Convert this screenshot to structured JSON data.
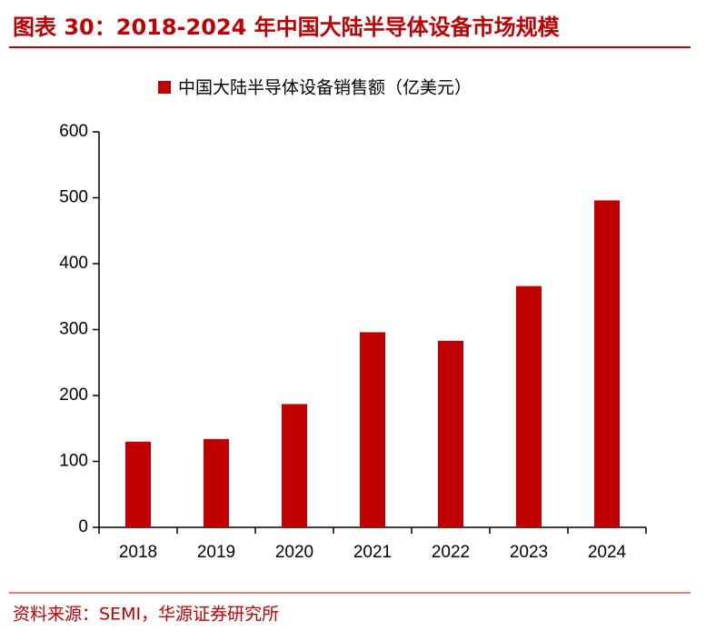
{
  "header": {
    "title": "图表 30：2018-2024 年中国大陆半导体设备市场规模"
  },
  "chart_data": {
    "type": "bar",
    "categories": [
      "2018",
      "2019",
      "2020",
      "2021",
      "2022",
      "2023",
      "2024"
    ],
    "series": [
      {
        "name": "中国大陆半导体设备销售额（亿美元）",
        "color": "#c00000",
        "values": [
          130,
          134,
          187,
          296,
          283,
          366,
          496
        ]
      }
    ],
    "ylim": [
      0,
      600
    ],
    "yticks": [
      0,
      100,
      200,
      300,
      400,
      500,
      600
    ],
    "grid": false,
    "legend": "top"
  },
  "footer": {
    "source": "资料来源：SEMI，华源证券研究所"
  }
}
